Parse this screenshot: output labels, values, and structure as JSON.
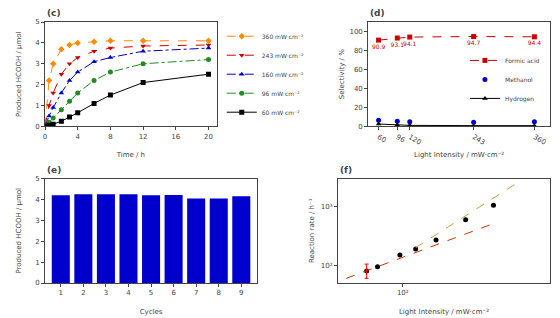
{
  "chart_data": [
    {
      "type": "line",
      "title": "(c)",
      "xlabel": "Time / h",
      "ylabel": "Produced HCOOH / μmol",
      "x": [
        0,
        0.5,
        1,
        2,
        3,
        4,
        6,
        8,
        12,
        20
      ],
      "series": [
        {
          "name": "360 mW·cm⁻²",
          "color": "#FF8C00",
          "marker": "diamond",
          "line_style": "dash",
          "values": [
            0,
            2.2,
            3.0,
            3.7,
            3.9,
            4.0,
            4.05,
            4.1,
            4.1,
            4.1
          ]
        },
        {
          "name": "243 mW·cm⁻²",
          "color": "#CC0000",
          "marker": "triangle-down",
          "line_style": "dash",
          "values": [
            0,
            1.0,
            1.6,
            2.5,
            3.0,
            3.3,
            3.6,
            3.75,
            3.85,
            3.9
          ]
        },
        {
          "name": "160 mW·cm⁻²",
          "color": "#0000CC",
          "marker": "triangle-up",
          "line_style": "dashdot",
          "values": [
            0,
            0.5,
            0.9,
            1.6,
            2.2,
            2.6,
            3.1,
            3.3,
            3.6,
            3.75
          ]
        },
        {
          "name": "96 mW·cm⁻²",
          "color": "#228B22",
          "marker": "circle",
          "line_style": "dashdot",
          "values": [
            0,
            0.2,
            0.4,
            0.8,
            1.2,
            1.6,
            2.2,
            2.6,
            3.0,
            3.2
          ]
        },
        {
          "name": "60 mW·cm⁻²",
          "color": "#000000",
          "marker": "square",
          "line_style": "solid",
          "values": [
            0,
            0.05,
            0.1,
            0.25,
            0.45,
            0.65,
            1.1,
            1.5,
            2.1,
            2.5
          ]
        }
      ],
      "xlim": [
        0,
        21
      ],
      "xticks": [
        0,
        4,
        8,
        12,
        16,
        20
      ],
      "ylim": [
        0,
        5
      ],
      "yticks": [
        0,
        1,
        2,
        3,
        4,
        5
      ],
      "legend": "outside",
      "grid": false
    },
    {
      "type": "line",
      "title": "(d)",
      "xlabel": "Light Intensity / mW·cm⁻²",
      "ylabel": "Selectivity / %",
      "x": [
        60,
        96,
        120,
        243,
        360
      ],
      "series": [
        {
          "name": "Formic acid",
          "color": "#CC0000",
          "marker": "square",
          "line_style": "dash",
          "values": [
            90.9,
            93.1,
            94.1,
            94.7,
            94.4
          ],
          "data_labels": true
        },
        {
          "name": "Methanol",
          "color": "#0000CC",
          "marker": "circle",
          "line_style": "none",
          "values": [
            6.5,
            5.5,
            4.8,
            4.5,
            4.8
          ]
        },
        {
          "name": "Hydrogen",
          "color": "#000000",
          "marker": "triangle-up",
          "line_style": "solid",
          "values": [
            2.5,
            1.5,
            1.1,
            0.8,
            0.8
          ]
        }
      ],
      "xlim": [
        40,
        390
      ],
      "xticks": [
        60,
        96,
        120,
        243,
        360
      ],
      "ylim": [
        0,
        110
      ],
      "yticks": [
        0,
        20,
        40,
        60,
        80,
        100
      ],
      "legend": "right",
      "grid": false
    },
    {
      "type": "bar",
      "title": "(e)",
      "xlabel": "Cycles",
      "ylabel": "Produced HCOOH / μmol",
      "x": [
        1,
        2,
        3,
        4,
        5,
        6,
        7,
        8,
        9
      ],
      "values": [
        4.2,
        4.25,
        4.25,
        4.25,
        4.2,
        4.22,
        4.05,
        4.05,
        4.15
      ],
      "color": "#0000CC",
      "xlim": [
        0.3,
        9.7
      ],
      "xticks": [
        1,
        2,
        3,
        4,
        5,
        6,
        7,
        8,
        9
      ],
      "ylim": [
        0,
        5
      ],
      "yticks": [
        0,
        1,
        2,
        3,
        4,
        5
      ],
      "grid": false
    },
    {
      "type": "scatter",
      "title": "(f)",
      "xlabel": "Light Intensity / mW·cm⁻²",
      "ylabel": "Reaction rate / h⁻¹",
      "log": true,
      "series": [
        {
          "type": "scatter",
          "color": "#000000",
          "x": [
            60,
            70,
            96,
            120,
            160,
            243,
            360
          ],
          "values": [
            80,
            95,
            150,
            190,
            270,
            600,
            1050
          ]
        },
        {
          "type": "errorbar",
          "color": "red",
          "x": [
            60
          ],
          "values": [
            80
          ],
          "error_minus": [
            20
          ],
          "error_plus": [
            25
          ]
        },
        {
          "type": "line",
          "color": "#CC3300",
          "line_style": "dash",
          "x": [
            45,
            350
          ],
          "values": [
            60,
            500
          ]
        },
        {
          "type": "line",
          "color": "#C8A040",
          "line_style": "dash",
          "x": [
            120,
            500
          ],
          "values": [
            200,
            2500
          ]
        }
      ],
      "xlim": [
        40,
        800
      ],
      "xticks": [
        {
          "value": 100,
          "label": "10²"
        }
      ],
      "ylim": [
        50,
        3000
      ],
      "yticks": [
        {
          "value": 100,
          "label": "10²"
        },
        {
          "value": 1000,
          "label": "10³"
        }
      ],
      "grid": false
    }
  ]
}
